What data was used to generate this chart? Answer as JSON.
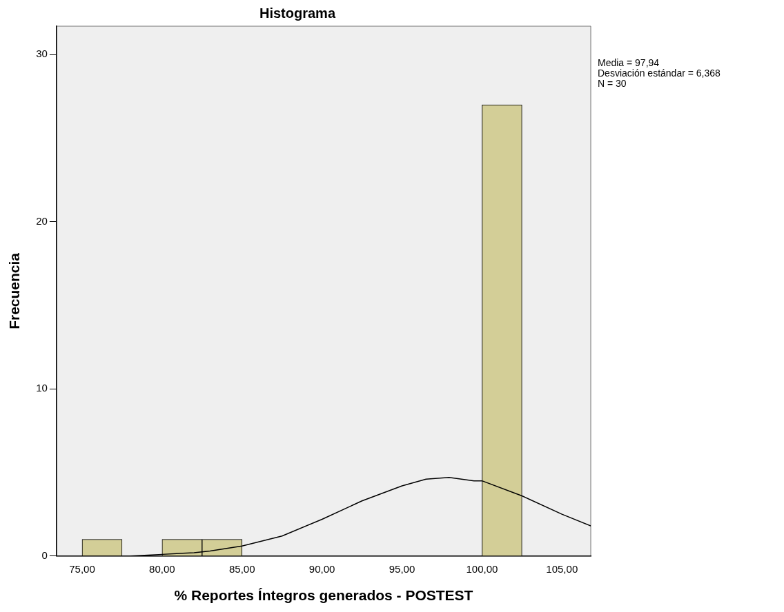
{
  "chart_data": {
    "type": "histogram",
    "title": "Histograma",
    "xlabel": "% Reportes Íntegros generados - POSTEST",
    "ylabel": "Frecuencia",
    "bins": [
      75,
      77.5,
      80,
      82.5,
      85,
      87.5,
      90,
      92.5,
      95,
      97.5,
      100,
      102.5
    ],
    "values": [
      1,
      0,
      1,
      1,
      0,
      0,
      0,
      0,
      0,
      0,
      27
    ],
    "color": "#d3ce97",
    "series": [
      {
        "type": "line",
        "color": "#000000",
        "x": [
          73.4,
          76,
          78,
          80,
          82,
          83,
          85,
          87.5,
          90,
          92.5,
          95,
          96.5,
          97.94,
          99.5,
          100,
          102.5,
          105,
          106.8
        ],
        "values": [
          0,
          0,
          0,
          0.1,
          0.2,
          0.3,
          0.6,
          1.2,
          2.2,
          3.3,
          4.2,
          4.6,
          4.7,
          4.5,
          4.5,
          3.6,
          2.5,
          1.8
        ]
      }
    ],
    "xlim": [
      73.4,
      106.8
    ],
    "ylim": [
      0,
      31.7
    ],
    "xticks": [
      {
        "value": 75,
        "label": "75,00"
      },
      {
        "value": 80,
        "label": "80,00"
      },
      {
        "value": 85,
        "label": "85,00"
      },
      {
        "value": 90,
        "label": "90,00"
      },
      {
        "value": 95,
        "label": "95,00"
      },
      {
        "value": 100,
        "label": "100,00"
      },
      {
        "value": 105,
        "label": "105,00"
      }
    ],
    "yticks": [
      0,
      10,
      20,
      30
    ],
    "grid": false,
    "legend": false,
    "marker": "none",
    "annotations": [
      "Media = 97,94",
      "Desviación estándar = 6,368",
      "N = 30"
    ]
  }
}
